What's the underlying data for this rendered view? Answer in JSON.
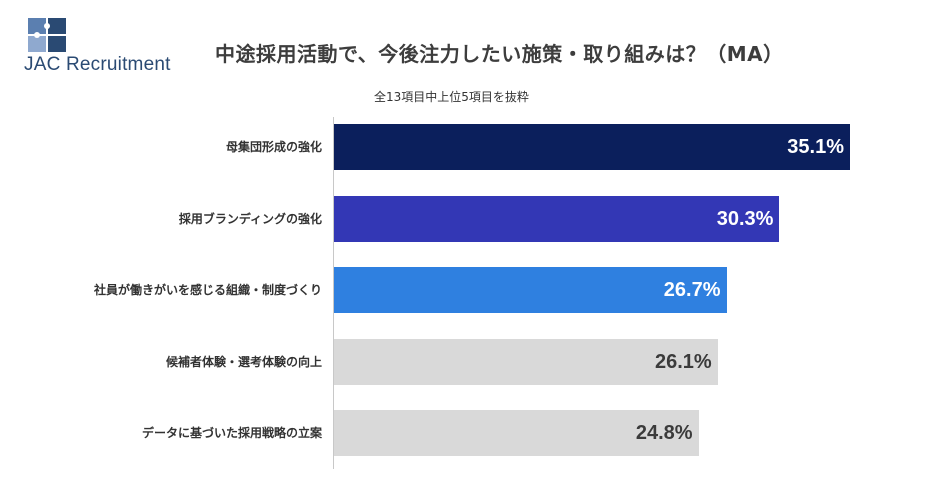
{
  "brand": {
    "logo_text": "JAC Recruitment",
    "color": "#2a4a73"
  },
  "chart_data": {
    "type": "bar",
    "orientation": "horizontal",
    "title": "中途採用活動で、今後注力したい施策・取り組みは？（MA）",
    "subtitle": "全13項目中上位5項目を抜粋",
    "categories": [
      "母集団形成の強化",
      "採用ブランディングの強化",
      "社員が働きがいを感じる組織・制度づくり",
      "候補者体験・選考体験の向上",
      "データに基づいた採用戦略の立案"
    ],
    "values": [
      35.1,
      30.3,
      26.7,
      26.1,
      24.8
    ],
    "value_labels": [
      "35.1%",
      "30.3%",
      "26.7%",
      "26.1%",
      "24.8%"
    ],
    "unit": "%",
    "xlim": [
      0,
      35.1
    ],
    "bar_colors": [
      "#0b1f5c",
      "#3337b5",
      "#2f80e0",
      "#d9d9d9",
      "#d9d9d9"
    ],
    "label_colors": [
      "#ffffff",
      "#ffffff",
      "#ffffff",
      "#3b3b3b",
      "#3b3b3b"
    ],
    "grid": false,
    "legend": "none"
  }
}
